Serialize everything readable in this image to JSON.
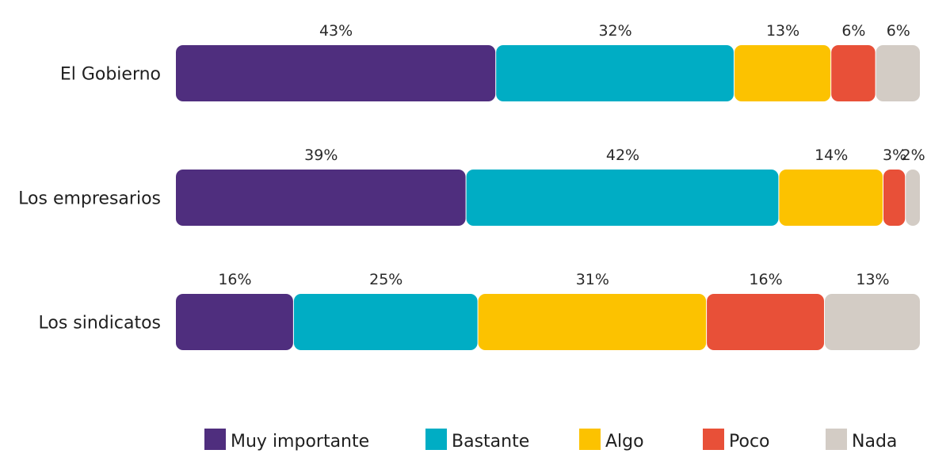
{
  "chart_data": {
    "type": "bar",
    "orientation": "horizontal",
    "stacked": true,
    "categories": [
      "El Gobierno",
      "Los empresarios",
      "Los sindicatos"
    ],
    "series": [
      {
        "name": "Muy importante",
        "color": "#4f2e7e",
        "values": [
          43,
          39,
          16
        ]
      },
      {
        "name": "Bastante",
        "color": "#00adc4",
        "values": [
          32,
          42,
          25
        ]
      },
      {
        "name": "Algo",
        "color": "#fcc200",
        "values": [
          13,
          14,
          31
        ]
      },
      {
        "name": "Poco",
        "color": "#e85038",
        "values": [
          6,
          3,
          16
        ]
      },
      {
        "name": "Nada",
        "color": "#d3ccc5",
        "values": [
          6,
          2,
          13
        ]
      }
    ],
    "value_labels": [
      [
        "43%",
        "32%",
        "13%",
        "6%",
        "6%"
      ],
      [
        "39%",
        "42%",
        "14%",
        "3%",
        "2%"
      ],
      [
        "16%",
        "25%",
        "31%",
        "16%",
        "13%"
      ]
    ],
    "legend_position": "bottom",
    "grid": false
  }
}
